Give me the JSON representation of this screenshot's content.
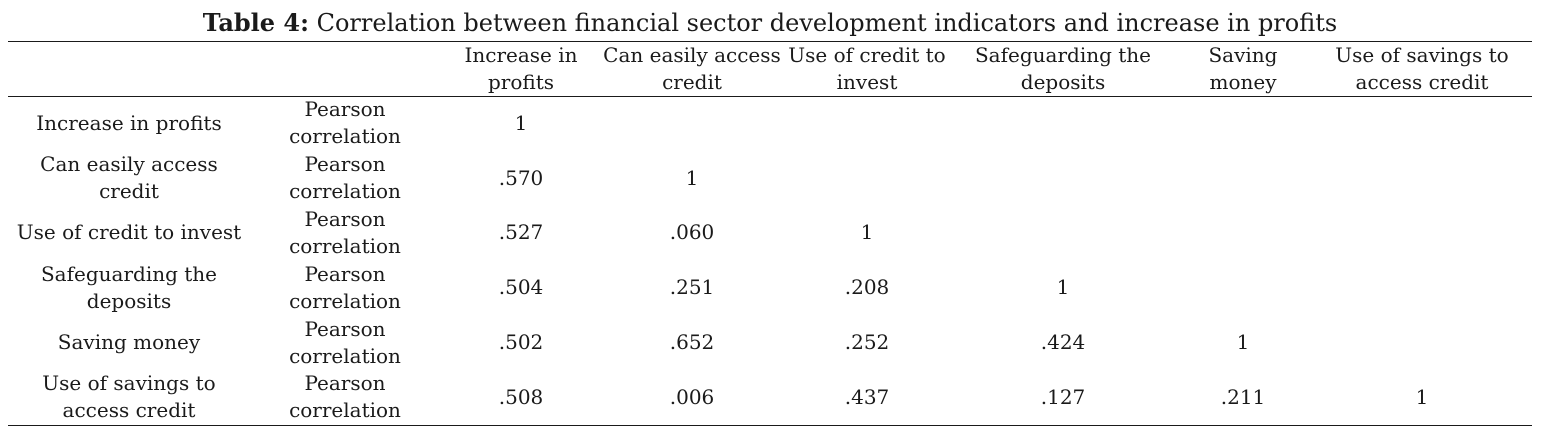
{
  "caption": {
    "label": "Table 4:",
    "text": " Correlation between financial sector development indicators and increase in profits"
  },
  "columns": [
    "Increase in profits",
    "Can easily access credit",
    "Use of credit to invest",
    "Safeguarding the deposits",
    "Saving money",
    "Use of savings to access credit"
  ],
  "rows": [
    {
      "label": "Increase in profits",
      "stat": "Pearson correlation",
      "values": [
        "1",
        "",
        "",
        "",
        "",
        ""
      ]
    },
    {
      "label": "Can easily access credit",
      "stat": "Pearson correlation",
      "values": [
        ".570",
        "1",
        "",
        "",
        "",
        ""
      ]
    },
    {
      "label": "Use of credit to invest",
      "stat": "Pearson correlation",
      "values": [
        ".527",
        ".060",
        "1",
        "",
        "",
        ""
      ]
    },
    {
      "label": "Safeguarding the deposits",
      "stat": "Pearson correlation",
      "values": [
        ".504",
        ".251",
        ".208",
        "1",
        "",
        ""
      ]
    },
    {
      "label": "Saving money",
      "stat": "Pearson correlation",
      "values": [
        ".502",
        ".652",
        ".252",
        ".424",
        "1",
        ""
      ]
    },
    {
      "label": "Use of savings to access credit",
      "stat": "Pearson correlation",
      "values": [
        ".508",
        ".006",
        ".437",
        ".127",
        ".211",
        "1"
      ]
    }
  ]
}
